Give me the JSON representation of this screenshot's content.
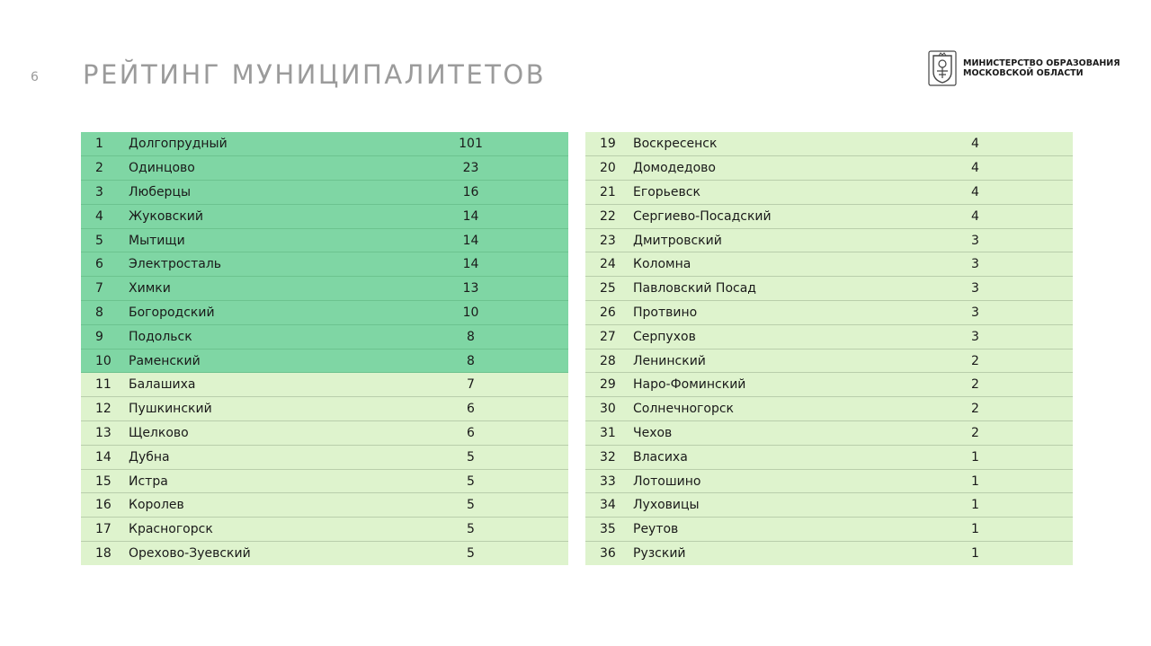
{
  "header": {
    "page_number": "6",
    "title": "РЕЙТИНГ МУНИЦИПАЛИТЕТОВ",
    "ministry_line1": "МИНИСТЕРСТВО ОБРАЗОВАНИЯ",
    "ministry_line2": "МОСКОВСКОЙ ОБЛАСТИ",
    "emblem_icon": "coat-of-arms-icon"
  },
  "colors": {
    "top10_row": "#7fd6a4",
    "other_row": "#def3cd",
    "title": "#9b9b9b"
  },
  "table_left": [
    {
      "rank": "1",
      "name": "Долгопрудный",
      "value": "101"
    },
    {
      "rank": "2",
      "name": "Одинцово",
      "value": "23"
    },
    {
      "rank": "3",
      "name": "Люберцы",
      "value": "16"
    },
    {
      "rank": "4",
      "name": "Жуковский",
      "value": "14"
    },
    {
      "rank": "5",
      "name": "Мытищи",
      "value": "14"
    },
    {
      "rank": "6",
      "name": "Электросталь",
      "value": "14"
    },
    {
      "rank": "7",
      "name": "Химки",
      "value": "13"
    },
    {
      "rank": "8",
      "name": "Богородский",
      "value": "10"
    },
    {
      "rank": "9",
      "name": "Подольск",
      "value": "8"
    },
    {
      "rank": "10",
      "name": "Раменский",
      "value": "8"
    },
    {
      "rank": "11",
      "name": "Балашиха",
      "value": "7"
    },
    {
      "rank": "12",
      "name": "Пушкинский",
      "value": "6"
    },
    {
      "rank": "13",
      "name": "Щелково",
      "value": "6"
    },
    {
      "rank": "14",
      "name": "Дубна",
      "value": "5"
    },
    {
      "rank": "15",
      "name": "Истра",
      "value": "5"
    },
    {
      "rank": "16",
      "name": "Королев",
      "value": "5"
    },
    {
      "rank": "17",
      "name": "Красногорск",
      "value": "5"
    },
    {
      "rank": "18",
      "name": "Орехово-Зуевский",
      "value": "5"
    }
  ],
  "table_right": [
    {
      "rank": "19",
      "name": "Воскресенск",
      "value": "4"
    },
    {
      "rank": "20",
      "name": "Домодедово",
      "value": "4"
    },
    {
      "rank": "21",
      "name": "Егорьевск",
      "value": "4"
    },
    {
      "rank": "22",
      "name": "Сергиево-Посадский",
      "value": "4"
    },
    {
      "rank": "23",
      "name": "Дмитровский",
      "value": "3"
    },
    {
      "rank": "24",
      "name": "Коломна",
      "value": "3"
    },
    {
      "rank": "25",
      "name": "Павловский Посад",
      "value": "3"
    },
    {
      "rank": "26",
      "name": "Протвино",
      "value": "3"
    },
    {
      "rank": "27",
      "name": "Серпухов",
      "value": "3"
    },
    {
      "rank": "28",
      "name": "Ленинский",
      "value": "2"
    },
    {
      "rank": "29",
      "name": "Наро-Фоминский",
      "value": "2"
    },
    {
      "rank": "30",
      "name": "Солнечногорск",
      "value": "2"
    },
    {
      "rank": "31",
      "name": "Чехов",
      "value": "2"
    },
    {
      "rank": "32",
      "name": "Власиха",
      "value": "1"
    },
    {
      "rank": "33",
      "name": "Лотошино",
      "value": "1"
    },
    {
      "rank": "34",
      "name": "Луховицы",
      "value": "1"
    },
    {
      "rank": "35",
      "name": "Реутов",
      "value": "1"
    },
    {
      "rank": "36",
      "name": "Рузский",
      "value": "1"
    }
  ]
}
